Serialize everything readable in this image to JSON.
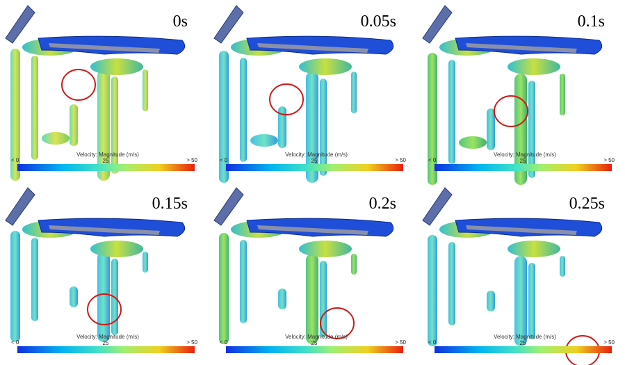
{
  "colorbar": {
    "title": "Velocity: Magnitude (m/s)",
    "min": "< 0",
    "mid": "25",
    "max": "> 50"
  },
  "panels": [
    {
      "time": "0s"
    },
    {
      "time": "0.05s"
    },
    {
      "time": "0.1s"
    },
    {
      "time": "0.15s"
    },
    {
      "time": "0.2s"
    },
    {
      "time": "0.25s"
    }
  ]
}
